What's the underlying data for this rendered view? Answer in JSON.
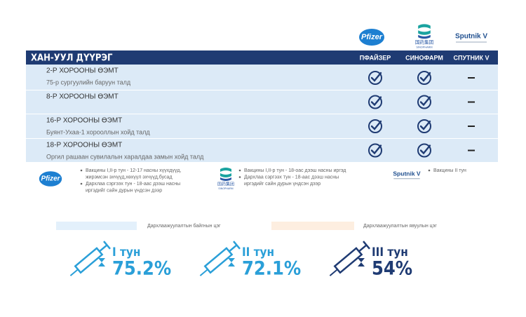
{
  "header": {
    "logos": {
      "pfizer": "Pfizer",
      "sinopharm_cn": "国药集团",
      "sinopharm": "SINOPHARM",
      "sputnik": "Sputnik V"
    }
  },
  "table": {
    "title": "ХАН-УУЛ ДҮҮРЭГ",
    "columns": [
      "ПФАЙЗЕР",
      "СИНОФАРМ",
      "СПУТНИК V"
    ],
    "rows": [
      {
        "name": "2-Р ХОРООНЫ ӨЭМТ",
        "location": "75-р сургуулийн баруун талд"
      },
      {
        "name": "8-Р ХОРООНЫ ӨЭМТ"
      },
      {
        "name": "16-Р ХОРООНЫ ӨЭМТ",
        "location": "Буянт-Ухаа-1 хорооллын хойд талд"
      },
      {
        "name": "18-Р ХОРООНЫ ӨЭМТ",
        "location": "Оргил рашаан сувилалын харалдаа замын хойд талд"
      }
    ]
  },
  "notes": {
    "pfizer": [
      "Вакцины I,II-р тун - 12-17 насны хүүхдүүд,",
      "жирэмсэн эхчүүд,хөхүүл эхчүүд,бусад",
      "Дархлаа сэргээх тун - 18-аас дээш насны",
      "иргэдийг сайн дурын үндсэн дээр"
    ],
    "sinopharm": [
      "Вакцины I,II-р тун - 18-оас дээш насны иргэд",
      "Дархлаа сэргээх тун - 18-аас дээш насны",
      "иргэдийг сайн дурын үндсэн дээр"
    ],
    "sputnik": [
      "Вакцины II тун"
    ]
  },
  "legend": [
    "Дархлаажуулалтын байгнын цэг",
    "Дархлаажуулалтын явуулын цэг"
  ],
  "stats": [
    {
      "dose": "I тун",
      "value": "75.2%"
    },
    {
      "dose": "II тун",
      "value": "72.1%"
    },
    {
      "dose": "III тун",
      "value": "54%"
    }
  ]
}
